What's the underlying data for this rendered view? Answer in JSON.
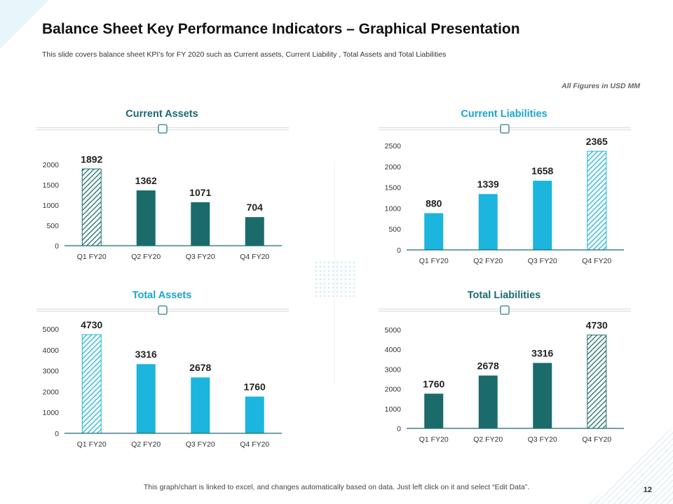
{
  "header": {
    "title": "Balance Sheet Key Performance Indicators – Graphical Presentation",
    "subtitle": "This slide covers balance sheet KPI’s  for FY 2020 such as Current assets, Current Liability , Total Assets and Total Liabilities",
    "units_note": "All Figures in USD MM"
  },
  "footer": {
    "note": "This graph/chart is linked to excel,  and changes automatically based on data. Just left click on it and select “Edit Data”.",
    "page_number": "12"
  },
  "colors": {
    "dark_teal": "#1b6b6b",
    "cyan": "#1bb5dd",
    "title_dark_teal": "#1a6a75",
    "title_cyan": "#1aa6cc"
  },
  "chart_data": [
    {
      "type": "bar",
      "title": "Current Assets",
      "categories": [
        "Q1 FY20",
        "Q2 FY20",
        "Q3 FY20",
        "Q4 FY20"
      ],
      "values": [
        1892,
        1362,
        1071,
        704
      ],
      "data_labels": [
        "1892",
        "1362",
        "1071",
        "704"
      ],
      "yticks": [
        "0",
        "500",
        "1000",
        "1500",
        "2000"
      ],
      "ylim": [
        0,
        2000
      ],
      "bar_color": "#1b6b6b",
      "highlight_index": 0,
      "highlight_style": "hatched"
    },
    {
      "type": "bar",
      "title": "Current Liabilities",
      "categories": [
        "Q1 FY20",
        "Q2 FY20",
        "Q3 FY20",
        "Q4 FY20"
      ],
      "values": [
        880,
        1339,
        1658,
        2365
      ],
      "data_labels": [
        "880",
        "1339",
        "1658",
        "2365"
      ],
      "yticks": [
        "0",
        "500",
        "1000",
        "1500",
        "2000",
        "2500"
      ],
      "ylim": [
        0,
        2500
      ],
      "bar_color": "#1bb5dd",
      "highlight_index": 3,
      "highlight_style": "hatched"
    },
    {
      "type": "bar",
      "title": "Total Assets",
      "categories": [
        "Q1 FY20",
        "Q2 FY20",
        "Q3 FY20",
        "Q4 FY20"
      ],
      "values": [
        4730,
        3316,
        2678,
        1760
      ],
      "data_labels": [
        "4730",
        "3316",
        "2678",
        "1760"
      ],
      "yticks": [
        "0",
        "1000",
        "2000",
        "3000",
        "4000",
        "5000"
      ],
      "ylim": [
        0,
        5000
      ],
      "bar_color": "#1bb5dd",
      "highlight_index": 0,
      "highlight_style": "hatched"
    },
    {
      "type": "bar",
      "title": "Total Liabilities",
      "categories": [
        "Q1 FY20",
        "Q2 FY20",
        "Q3 FY20",
        "Q4 FY20"
      ],
      "values": [
        1760,
        2678,
        3316,
        4730
      ],
      "data_labels": [
        "1760",
        "2678",
        "3316",
        "4730"
      ],
      "yticks": [
        "0",
        "1000",
        "2000",
        "3000",
        "4000",
        "5000"
      ],
      "ylim": [
        0,
        5000
      ],
      "bar_color": "#1b6b6b",
      "highlight_index": 3,
      "highlight_style": "hatched"
    }
  ]
}
